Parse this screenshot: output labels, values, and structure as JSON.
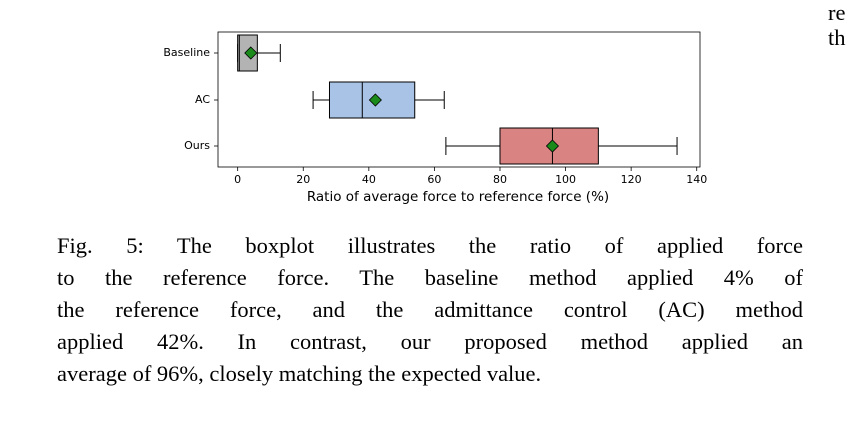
{
  "chart_data": {
    "type": "boxplot",
    "categories": [
      "Baseline",
      "AC",
      "Ours"
    ],
    "stats": [
      {
        "whislo": 0,
        "q1": 0,
        "med": 0.5,
        "q3": 6,
        "whishi": 13,
        "mean": 4
      },
      {
        "whislo": 23,
        "q1": 28,
        "med": 38,
        "q3": 54,
        "whishi": 63,
        "mean": 42
      },
      {
        "whislo": 63.5,
        "q1": 80,
        "med": 96,
        "q3": 110,
        "whishi": 134,
        "mean": 96
      }
    ],
    "colors": [
      "#b3b3b3",
      "#a8c3e6",
      "#d98383"
    ],
    "mean_color": "#1a8a1a",
    "xlim": [
      -6,
      141
    ],
    "xticks": [
      0,
      20,
      40,
      60,
      80,
      100,
      120,
      140
    ],
    "xlabel": "Ratio of average force to reference force (%)"
  },
  "caption_lines": [
    "Fig. 5: The boxplot illustrates the ratio of applied force",
    "to the reference force. The baseline method applied 4% of",
    "the reference force, and the admittance control (AC) method",
    "applied 42%. In contrast, our proposed method applied an",
    "average of 96%, closely matching the expected value."
  ],
  "margin_fragments": [
    "re",
    "th"
  ]
}
